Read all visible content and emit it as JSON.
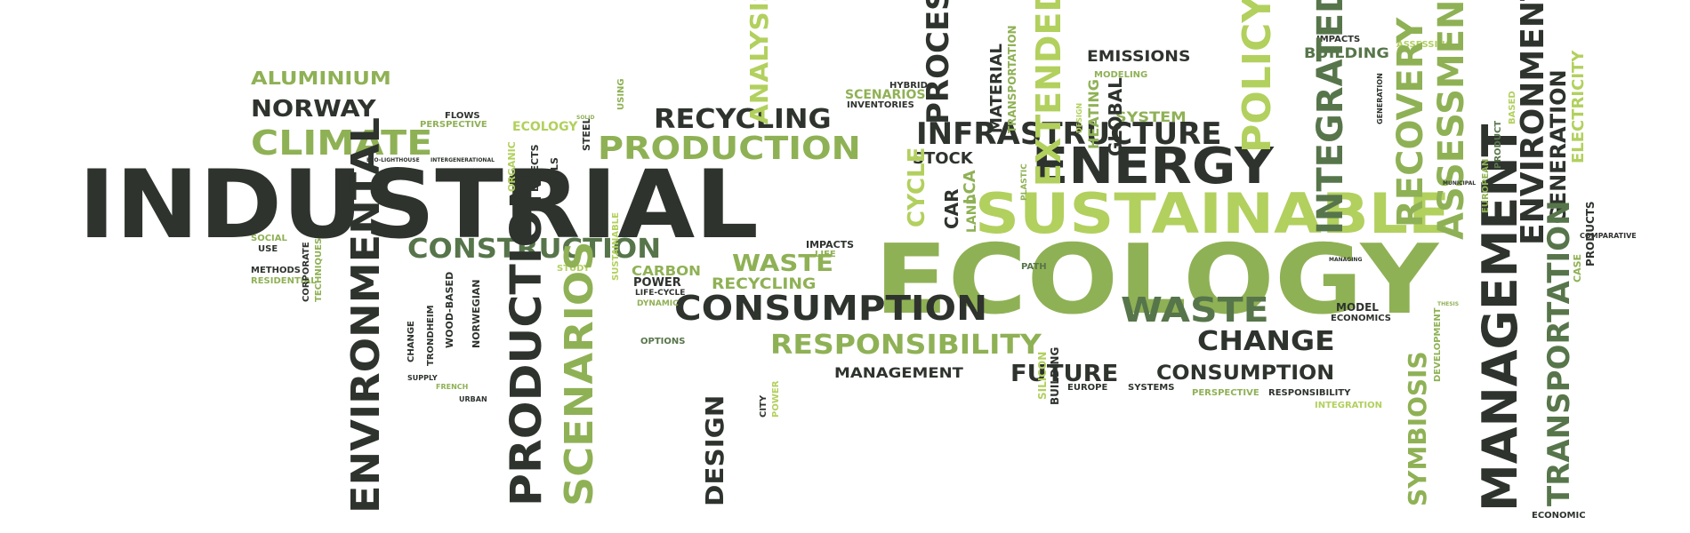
{
  "colors": {
    "dark": "#2e332e",
    "mid": "#57754a",
    "green": "#8fb155",
    "light": "#b2d05e"
  },
  "words": [
    {
      "text": "INDUSTRIAL",
      "color": "dark"
    },
    {
      "text": "ECOLOGY",
      "color": "green"
    },
    {
      "text": "SUSTAINABLE",
      "color": "light"
    },
    {
      "text": "ENERGY",
      "color": "dark"
    },
    {
      "text": "INFRASTRUCTURE",
      "color": "dark"
    },
    {
      "text": "PRODUCTION",
      "color": "green"
    },
    {
      "text": "RECYCLING",
      "color": "dark"
    },
    {
      "text": "CLIMATE",
      "color": "green"
    },
    {
      "text": "NORWAY",
      "color": "dark"
    },
    {
      "text": "ALUMINIUM",
      "color": "green"
    },
    {
      "text": "CONSTRUCTION",
      "color": "mid"
    },
    {
      "text": "CONSUMPTION",
      "color": "dark"
    },
    {
      "text": "WASTE",
      "color": "mid"
    },
    {
      "text": "WASTE",
      "color": "green"
    },
    {
      "text": "RECYCLING",
      "color": "green"
    },
    {
      "text": "RESPONSIBILITY",
      "color": "green"
    },
    {
      "text": "CHANGE",
      "color": "dark"
    },
    {
      "text": "FUTURE",
      "color": "dark"
    },
    {
      "text": "CONSUMPTION",
      "color": "dark"
    },
    {
      "text": "MANAGEMENT",
      "color": "dark"
    },
    {
      "text": "EMISSIONS",
      "color": "dark"
    },
    {
      "text": "BUILDING",
      "color": "mid"
    },
    {
      "text": "SYSTEM",
      "color": "green"
    },
    {
      "text": "STOCK",
      "color": "dark"
    },
    {
      "text": "CARBON",
      "color": "green"
    },
    {
      "text": "POWER",
      "color": "dark"
    },
    {
      "text": "LIFE-CYCLE",
      "color": "dark"
    },
    {
      "text": "DYNAMIC",
      "color": "green"
    },
    {
      "text": "OPTIONS",
      "color": "mid"
    },
    {
      "text": "IMPACTS",
      "color": "dark"
    },
    {
      "text": "LIFE",
      "color": "green"
    },
    {
      "text": "PATH",
      "color": "mid"
    },
    {
      "text": "MODEL",
      "color": "dark"
    },
    {
      "text": "ECONOMICS",
      "color": "dark"
    },
    {
      "text": "EUROPE",
      "color": "dark"
    },
    {
      "text": "SYSTEMS",
      "color": "dark"
    },
    {
      "text": "PERSPECTIVE",
      "color": "green"
    },
    {
      "text": "RESPONSIBILITY",
      "color": "dark"
    },
    {
      "text": "INTEGRATION",
      "color": "light"
    },
    {
      "text": "ECONOMIC",
      "color": "dark"
    },
    {
      "text": "SOCIAL",
      "color": "green"
    },
    {
      "text": "USE",
      "color": "dark"
    },
    {
      "text": "METHODS",
      "color": "dark"
    },
    {
      "text": "RESIDENTIAL",
      "color": "green"
    },
    {
      "text": "FLOWS",
      "color": "dark"
    },
    {
      "text": "PERSPECTIVE",
      "color": "green"
    },
    {
      "text": "ECOLOGY",
      "color": "light"
    },
    {
      "text": "STUDY",
      "color": "light"
    },
    {
      "text": "HYBRID",
      "color": "dark"
    },
    {
      "text": "SCENARIOS",
      "color": "green"
    },
    {
      "text": "INVENTORIES",
      "color": "dark"
    },
    {
      "text": "IMPACTS",
      "color": "dark"
    },
    {
      "text": "MODELING",
      "color": "green"
    },
    {
      "text": "ASSESSING",
      "color": "light"
    },
    {
      "text": "ENVIRONMENTAL",
      "color": "dark"
    },
    {
      "text": "PRODUCTION",
      "color": "dark"
    },
    {
      "text": "SCENARIOS",
      "color": "green"
    },
    {
      "text": "DESIGN",
      "color": "dark"
    },
    {
      "text": "ANALYSIS",
      "color": "light"
    },
    {
      "text": "PROCESS",
      "color": "dark"
    },
    {
      "text": "CYCLE",
      "color": "light"
    },
    {
      "text": "CAR",
      "color": "dark"
    },
    {
      "text": "LCA",
      "color": "green"
    },
    {
      "text": "LAND",
      "color": "green"
    },
    {
      "text": "MATERIAL",
      "color": "dark"
    },
    {
      "text": "TRANSPORTATION",
      "color": "green"
    },
    {
      "text": "EXTENDED",
      "color": "light"
    },
    {
      "text": "HEATING",
      "color": "green"
    },
    {
      "text": "GLOBAL",
      "color": "dark"
    },
    {
      "text": "POLICY",
      "color": "light"
    },
    {
      "text": "INTEGRATED",
      "color": "mid"
    },
    {
      "text": "RECOVERY",
      "color": "green"
    },
    {
      "text": "ASSESSMENT",
      "color": "green"
    },
    {
      "text": "ENVIRONMENTAL",
      "color": "dark"
    },
    {
      "text": "GENERATION",
      "color": "dark"
    },
    {
      "text": "ELECTRICITY",
      "color": "light"
    },
    {
      "text": "MANAGEMENT",
      "color": "dark"
    },
    {
      "text": "TRANSPORTATION",
      "color": "mid"
    },
    {
      "text": "SYMBIOSIS",
      "color": "green"
    },
    {
      "text": "DEVELOPMENT",
      "color": "green"
    },
    {
      "text": "PRODUCTS",
      "color": "dark"
    },
    {
      "text": "CASE",
      "color": "green"
    },
    {
      "text": "STEEL",
      "color": "dark"
    },
    {
      "text": "ORGANIC",
      "color": "light"
    },
    {
      "text": "FUELS",
      "color": "dark"
    },
    {
      "text": "EFFECTS",
      "color": "dark"
    },
    {
      "text": "NORWEGIAN",
      "color": "dark"
    },
    {
      "text": "WOOD-BASED",
      "color": "dark"
    },
    {
      "text": "TRONDHEIM",
      "color": "dark"
    },
    {
      "text": "CHANGE",
      "color": "dark"
    },
    {
      "text": "SUPPLY",
      "color": "dark"
    },
    {
      "text": "FRENCH",
      "color": "green"
    },
    {
      "text": "URBAN",
      "color": "dark"
    },
    {
      "text": "SUSTAINABLE",
      "color": "light"
    },
    {
      "text": "CORPORATE",
      "color": "dark"
    },
    {
      "text": "TECHNIQUES",
      "color": "green"
    },
    {
      "text": "EUROPEAN",
      "color": "green"
    },
    {
      "text": "PRODUCT",
      "color": "mid"
    },
    {
      "text": "BASED",
      "color": "light"
    },
    {
      "text": "SILICON",
      "color": "light"
    },
    {
      "text": "BUILDING",
      "color": "dark"
    },
    {
      "text": "CITY",
      "color": "dark"
    },
    {
      "text": "POWER",
      "color": "light"
    },
    {
      "text": "DESIGN",
      "color": "light"
    },
    {
      "text": "GENERATION",
      "color": "dark"
    },
    {
      "text": "ECO-LIGHTHOUSE",
      "color": "dark"
    },
    {
      "text": "INTERGENERATIONAL",
      "color": "dark"
    },
    {
      "text": "SOLID",
      "color": "green"
    },
    {
      "text": "USING",
      "color": "green"
    },
    {
      "text": "COMPARATIVE",
      "color": "dark"
    },
    {
      "text": "MUNICIPAL",
      "color": "dark"
    },
    {
      "text": "PLASTIC",
      "color": "green"
    },
    {
      "text": "MANAGING",
      "color": "dark"
    },
    {
      "text": "THESIS",
      "color": "green"
    }
  ]
}
